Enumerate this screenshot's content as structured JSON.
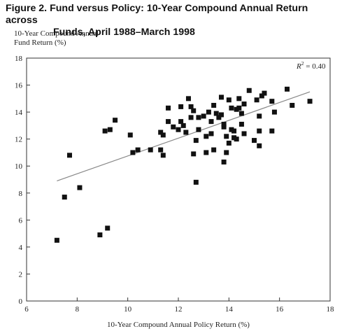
{
  "figure": {
    "title_line1": "Figure 2.  Fund versus Policy: 10-Year Compound Annual Return across",
    "title_line2": "Funds, April 1988–March 1998"
  },
  "chart_data": {
    "type": "scatter",
    "ylabel_line1": "10-Year Compound Annual",
    "ylabel_line2": "Fund Return (%)",
    "xlabel": "10-Year Compound Annual Policy Return (%)",
    "xlim": [
      6,
      18
    ],
    "ylim": [
      0,
      18
    ],
    "x_ticks": [
      "6",
      "8",
      "10",
      "12",
      "14",
      "16",
      "18"
    ],
    "y_ticks": [
      "0",
      "2",
      "4",
      "6",
      "8",
      "10",
      "12",
      "14",
      "16",
      "18"
    ],
    "annotation": {
      "r_symbol": "R",
      "r_sup": "2",
      "r_value": " = 0.40"
    },
    "trendline": {
      "x": [
        7.2,
        17.2
      ],
      "y": [
        8.9,
        15.5
      ]
    },
    "grid": false,
    "legend": "none",
    "colors": {
      "marker": "#111111",
      "line": "#888888",
      "axis": "#333333"
    },
    "points": [
      {
        "x": 7.2,
        "y": 4.5
      },
      {
        "x": 7.5,
        "y": 7.7
      },
      {
        "x": 7.7,
        "y": 10.8
      },
      {
        "x": 8.1,
        "y": 8.4
      },
      {
        "x": 8.9,
        "y": 4.9
      },
      {
        "x": 9.1,
        "y": 12.6
      },
      {
        "x": 9.2,
        "y": 5.4
      },
      {
        "x": 9.3,
        "y": 12.7
      },
      {
        "x": 9.5,
        "y": 13.4
      },
      {
        "x": 10.1,
        "y": 12.3
      },
      {
        "x": 10.2,
        "y": 11.0
      },
      {
        "x": 10.4,
        "y": 11.2
      },
      {
        "x": 10.9,
        "y": 11.2
      },
      {
        "x": 11.3,
        "y": 11.2
      },
      {
        "x": 11.3,
        "y": 12.5
      },
      {
        "x": 11.4,
        "y": 12.3
      },
      {
        "x": 11.4,
        "y": 10.8
      },
      {
        "x": 11.6,
        "y": 13.3
      },
      {
        "x": 11.6,
        "y": 14.3
      },
      {
        "x": 11.8,
        "y": 12.9
      },
      {
        "x": 12.0,
        "y": 12.7
      },
      {
        "x": 12.1,
        "y": 13.3
      },
      {
        "x": 12.1,
        "y": 14.4
      },
      {
        "x": 12.2,
        "y": 13.0
      },
      {
        "x": 12.3,
        "y": 12.5
      },
      {
        "x": 12.4,
        "y": 15.0
      },
      {
        "x": 12.5,
        "y": 14.4
      },
      {
        "x": 12.5,
        "y": 13.6
      },
      {
        "x": 12.6,
        "y": 14.1
      },
      {
        "x": 12.6,
        "y": 10.9
      },
      {
        "x": 12.7,
        "y": 8.8
      },
      {
        "x": 12.7,
        "y": 11.9
      },
      {
        "x": 12.8,
        "y": 12.7
      },
      {
        "x": 12.8,
        "y": 13.6
      },
      {
        "x": 13.0,
        "y": 13.7
      },
      {
        "x": 13.1,
        "y": 12.2
      },
      {
        "x": 13.1,
        "y": 11.0
      },
      {
        "x": 13.2,
        "y": 14.0
      },
      {
        "x": 13.3,
        "y": 12.4
      },
      {
        "x": 13.3,
        "y": 13.3
      },
      {
        "x": 13.4,
        "y": 14.5
      },
      {
        "x": 13.4,
        "y": 11.2
      },
      {
        "x": 13.5,
        "y": 13.9
      },
      {
        "x": 13.6,
        "y": 13.6
      },
      {
        "x": 13.7,
        "y": 15.1
      },
      {
        "x": 13.7,
        "y": 13.8
      },
      {
        "x": 13.8,
        "y": 12.9
      },
      {
        "x": 13.8,
        "y": 10.3
      },
      {
        "x": 13.8,
        "y": 13.1
      },
      {
        "x": 13.9,
        "y": 12.2
      },
      {
        "x": 13.9,
        "y": 11.0
      },
      {
        "x": 14.0,
        "y": 14.9
      },
      {
        "x": 14.0,
        "y": 11.7
      },
      {
        "x": 14.1,
        "y": 12.7
      },
      {
        "x": 14.1,
        "y": 14.3
      },
      {
        "x": 14.2,
        "y": 12.1
      },
      {
        "x": 14.2,
        "y": 12.6
      },
      {
        "x": 14.3,
        "y": 14.2
      },
      {
        "x": 14.3,
        "y": 12.0
      },
      {
        "x": 14.4,
        "y": 15.0
      },
      {
        "x": 14.4,
        "y": 14.3
      },
      {
        "x": 14.5,
        "y": 13.9
      },
      {
        "x": 14.5,
        "y": 13.1
      },
      {
        "x": 14.6,
        "y": 14.6
      },
      {
        "x": 14.6,
        "y": 12.4
      },
      {
        "x": 14.8,
        "y": 15.6
      },
      {
        "x": 15.0,
        "y": 11.9
      },
      {
        "x": 15.1,
        "y": 14.9
      },
      {
        "x": 15.2,
        "y": 11.5
      },
      {
        "x": 15.2,
        "y": 13.7
      },
      {
        "x": 15.2,
        "y": 12.6
      },
      {
        "x": 15.3,
        "y": 15.2
      },
      {
        "x": 15.4,
        "y": 15.4
      },
      {
        "x": 15.7,
        "y": 14.8
      },
      {
        "x": 15.7,
        "y": 12.6
      },
      {
        "x": 15.8,
        "y": 14.0
      },
      {
        "x": 16.3,
        "y": 15.7
      },
      {
        "x": 16.5,
        "y": 14.5
      },
      {
        "x": 17.2,
        "y": 14.8
      }
    ]
  }
}
